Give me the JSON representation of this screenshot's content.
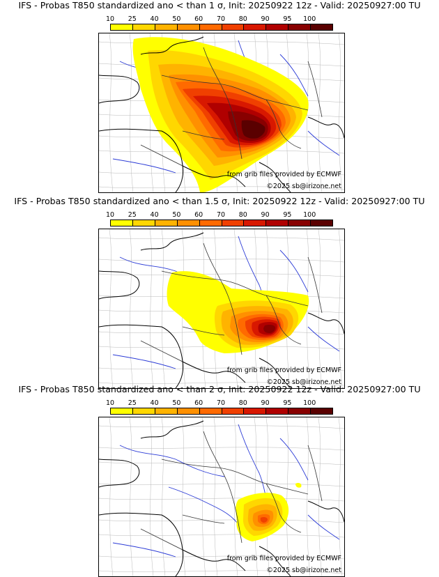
{
  "colorbar": {
    "ticks": [
      "10",
      "25",
      "40",
      "50",
      "60",
      "70",
      "80",
      "90",
      "95",
      "100"
    ],
    "colors": [
      "#ffff00",
      "#ffd700",
      "#ffb300",
      "#ff9000",
      "#ff6a00",
      "#f04000",
      "#d81800",
      "#b00000",
      "#880000",
      "#5a0000"
    ]
  },
  "credits": {
    "source": "from grib files provided by ECMWF",
    "copyright": "©2025 sb@irizone.net"
  },
  "panels": [
    {
      "title": "IFS - Probas T850  standardized ano < than 1 σ, Init: 20250922 12z - Valid: 20250927:00 TU"
    },
    {
      "title": "IFS - Probas T850  standardized ano < than 1.5 σ, Init: 20250922 12z - Valid: 20250927:00 TU"
    },
    {
      "title": "IFS - Probas T850  standardized ano < than 2 σ, Init: 20250922 12z - Valid: 20250927:00 TU"
    }
  ]
}
